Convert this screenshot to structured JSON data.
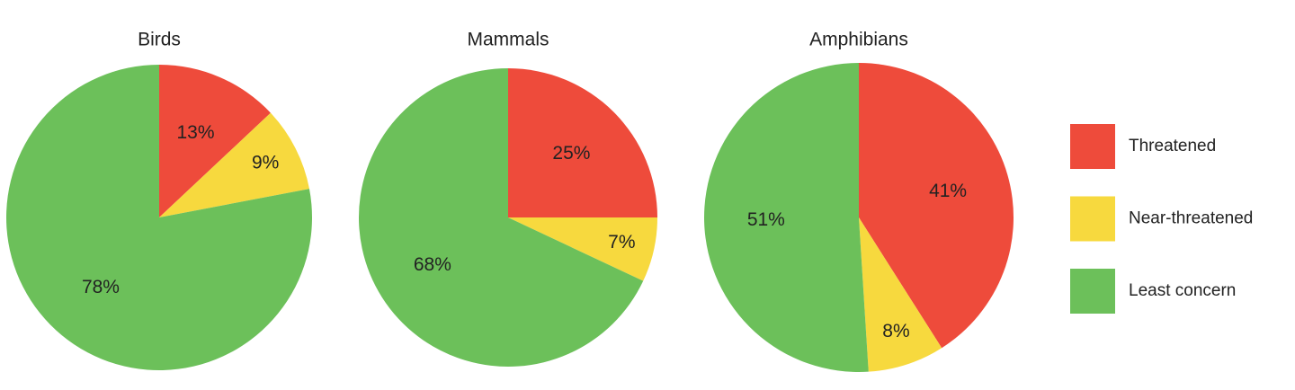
{
  "chart_data": [
    {
      "type": "pie",
      "title": "Birds",
      "values": [
        13,
        9,
        78
      ],
      "value_labels": [
        "13%",
        "9%",
        "78%"
      ]
    },
    {
      "type": "pie",
      "title": "Mammals",
      "values": [
        25,
        7,
        68
      ],
      "value_labels": [
        "25%",
        "7%",
        "68%"
      ]
    },
    {
      "type": "pie",
      "title": "Amphibians",
      "values": [
        41,
        8,
        51
      ],
      "value_labels": [
        "41%",
        "8%",
        "51%"
      ]
    }
  ],
  "legend": {
    "entries": [
      "Threatened",
      "Near-threatened",
      "Least concern"
    ],
    "colors": [
      "#ee4b3b",
      "#f7d93e",
      "#6cc05a"
    ]
  }
}
